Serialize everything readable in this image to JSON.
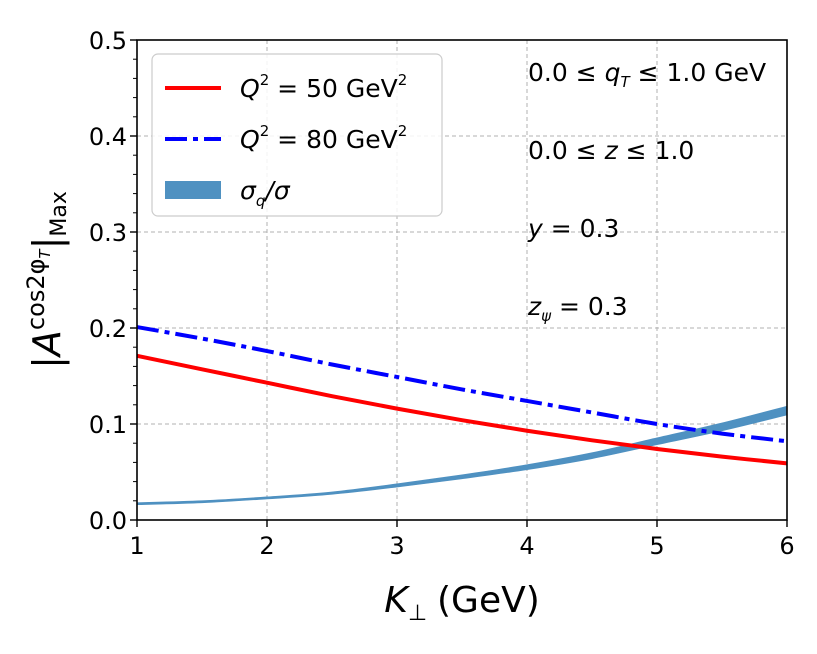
{
  "chart_data": {
    "type": "line",
    "xlabel": "K⊥ (GeV)",
    "xlabel_main": "K",
    "xlabel_sub": "⊥",
    "xlabel_unit": "(GeV)",
    "ylabel": "|A^{cos2φT}|Max",
    "ylabel_main": "|A",
    "ylabel_sup": "cos2φ",
    "ylabel_sup_sub": "T",
    "ylabel_bar": "|",
    "ylabel_sub": "Max",
    "xlim": [
      1,
      6
    ],
    "ylim": [
      0.0,
      0.5
    ],
    "xticks": [
      1,
      2,
      3,
      4,
      5,
      6
    ],
    "yticks": [
      0.0,
      0.1,
      0.2,
      0.3,
      0.4,
      0.5
    ],
    "xtick_labels": [
      "1",
      "2",
      "3",
      "4",
      "5",
      "6"
    ],
    "ytick_labels": [
      "0.0",
      "0.1",
      "0.2",
      "0.3",
      "0.4",
      "0.5"
    ],
    "grid": true,
    "legend_location": "top-left",
    "series": [
      {
        "name": "Q^2 = 50 GeV^2",
        "label_main": "Q",
        "label_sup": "2",
        "label_rest": " = 50 GeV",
        "label_sup2": "2",
        "style": "solid",
        "color": "#ff0000",
        "x": [
          1,
          1.5,
          2,
          2.5,
          3,
          3.5,
          4,
          4.5,
          5,
          5.5,
          6
        ],
        "y": [
          0.171,
          0.157,
          0.143,
          0.129,
          0.116,
          0.104,
          0.093,
          0.083,
          0.074,
          0.066,
          0.059
        ]
      },
      {
        "name": "Q^2 = 80 GeV^2",
        "label_main": "Q",
        "label_sup": "2",
        "label_rest": " = 80 GeV",
        "label_sup2": "2",
        "style": "dashdot",
        "color": "#0000ff",
        "x": [
          1,
          1.5,
          2,
          2.5,
          3,
          3.5,
          4,
          4.5,
          5,
          5.5,
          6
        ],
        "y": [
          0.201,
          0.189,
          0.176,
          0.162,
          0.149,
          0.136,
          0.124,
          0.112,
          0.1,
          0.09,
          0.082
        ]
      },
      {
        "name": "σq/σ",
        "label_main": "σ",
        "label_sub": "q",
        "label_rest": "/σ",
        "style": "band",
        "color": "#4f91c1",
        "x": [
          1,
          1.5,
          2,
          2.5,
          3,
          3.5,
          4,
          4.5,
          5,
          5.5,
          6
        ],
        "y": [
          0.017,
          0.019,
          0.023,
          0.028,
          0.036,
          0.045,
          0.055,
          0.067,
          0.082,
          0.097,
          0.114
        ],
        "width": [
          0.001,
          0.001,
          0.001,
          0.0012,
          0.0016,
          0.002,
          0.0025,
          0.003,
          0.0035,
          0.004,
          0.0045
        ]
      }
    ],
    "annotations": [
      {
        "id": "qt",
        "text": "0.0 ≤ qT ≤ 1.0 GeV",
        "parts": [
          "0.0 ≤ ",
          "q",
          "T",
          " ≤ 1.0 GeV"
        ]
      },
      {
        "id": "z",
        "text": "0.0 ≤ z ≤ 1.0",
        "parts": [
          "0.0 ≤ ",
          "z",
          "",
          " ≤ 1.0"
        ]
      },
      {
        "id": "y",
        "text": "y = 0.3",
        "parts": [
          "",
          "y",
          "",
          " = 0.3"
        ]
      },
      {
        "id": "zpsi",
        "text": "zψ = 0.3",
        "parts": [
          "",
          "z",
          "ψ",
          " = 0.3"
        ]
      }
    ]
  }
}
